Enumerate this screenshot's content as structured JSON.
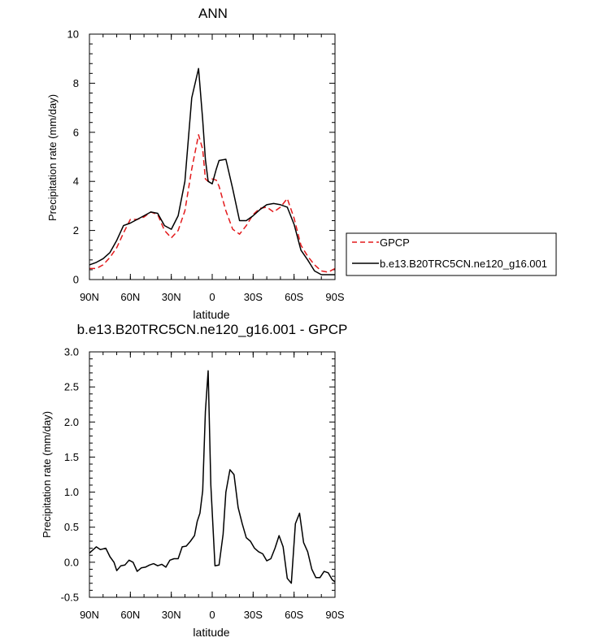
{
  "chart_data": [
    {
      "type": "line",
      "title": "ANN",
      "xlabel": "latitude",
      "ylabel": "Precipitation rate (mm/day)",
      "xlim": [
        90,
        -90
      ],
      "ylim": [
        0,
        10
      ],
      "xticks": [
        "90N",
        "60N",
        "30N",
        "0",
        "30S",
        "60S",
        "90S"
      ],
      "yticks": [
        "0",
        "2",
        "4",
        "6",
        "8",
        "10"
      ],
      "legend_position": "right",
      "series": [
        {
          "name": "GPCP",
          "color": "#e31a1c",
          "dash": "dashed",
          "x": [
            90,
            85,
            80,
            75,
            70,
            65,
            60,
            55,
            50,
            45,
            40,
            35,
            30,
            25,
            20,
            15,
            10,
            7,
            5,
            3,
            0,
            -3,
            -5,
            -10,
            -15,
            -20,
            -25,
            -30,
            -35,
            -40,
            -45,
            -50,
            -55,
            -60,
            -65,
            -70,
            -75,
            -80,
            -85,
            -90
          ],
          "y": [
            0.45,
            0.45,
            0.6,
            0.9,
            1.3,
            1.9,
            2.45,
            2.45,
            2.55,
            2.75,
            2.65,
            2.0,
            1.7,
            2.0,
            2.8,
            4.5,
            5.9,
            5.3,
            4.1,
            4.0,
            4.1,
            4.05,
            3.8,
            2.8,
            2.05,
            1.85,
            2.2,
            2.65,
            2.9,
            2.95,
            2.75,
            2.95,
            3.3,
            2.5,
            1.4,
            0.95,
            0.6,
            0.35,
            0.3,
            0.45
          ]
        },
        {
          "name": "b.e13.B20TRC5CN.ne120_g16.001",
          "color": "#000000",
          "dash": "solid",
          "x": [
            90,
            85,
            80,
            75,
            70,
            65,
            60,
            55,
            50,
            45,
            40,
            35,
            30,
            25,
            20,
            15,
            10,
            7,
            5,
            3,
            0,
            -3,
            -5,
            -10,
            -15,
            -20,
            -25,
            -30,
            -35,
            -40,
            -45,
            -50,
            -55,
            -60,
            -65,
            -70,
            -75,
            -80,
            -85,
            -90
          ],
          "y": [
            0.6,
            0.7,
            0.85,
            1.1,
            1.6,
            2.2,
            2.3,
            2.45,
            2.6,
            2.75,
            2.7,
            2.2,
            2.05,
            2.6,
            4.0,
            7.4,
            8.6,
            6.5,
            4.9,
            4.0,
            3.9,
            4.5,
            4.85,
            4.9,
            3.7,
            2.4,
            2.4,
            2.6,
            2.85,
            3.05,
            3.1,
            3.05,
            2.95,
            2.25,
            1.2,
            0.8,
            0.35,
            0.2,
            0.2,
            0.2
          ]
        }
      ]
    },
    {
      "type": "line",
      "title": "b.e13.B20TRC5CN.ne120_g16.001 - GPCP",
      "xlabel": "latitude",
      "ylabel": "Precipitation rate (mm/day)",
      "xlim": [
        90,
        -90
      ],
      "ylim": [
        -0.5,
        3.0
      ],
      "xticks": [
        "90N",
        "60N",
        "30N",
        "0",
        "30S",
        "60S",
        "90S"
      ],
      "yticks": [
        "-0.5",
        "0.0",
        "0.5",
        "1.0",
        "1.5",
        "2.0",
        "2.5",
        "3.0"
      ],
      "series": [
        {
          "color": "#000000",
          "dash": "solid",
          "x": [
            90,
            85,
            82,
            78,
            75,
            72,
            70,
            67,
            64,
            61,
            58,
            55,
            52,
            49,
            46,
            43,
            40,
            37,
            34,
            31,
            28,
            25,
            22,
            19,
            16,
            13,
            11,
            9,
            7,
            5,
            3,
            1,
            -2,
            -5,
            -8,
            -10,
            -13,
            -16,
            -19,
            -22,
            -25,
            -28,
            -31,
            -34,
            -37,
            -40,
            -43,
            -46,
            -49,
            -52,
            -55,
            -58,
            -61,
            -64,
            -67,
            -70,
            -73,
            -76,
            -79,
            -82,
            -85,
            -88,
            -90
          ],
          "y": [
            0.13,
            0.22,
            0.18,
            0.2,
            0.08,
            0.0,
            -0.12,
            -0.05,
            -0.04,
            0.03,
            0.0,
            -0.13,
            -0.08,
            -0.07,
            -0.04,
            -0.02,
            -0.05,
            -0.03,
            -0.07,
            0.03,
            0.05,
            0.05,
            0.22,
            0.23,
            0.3,
            0.38,
            0.58,
            0.7,
            1.02,
            2.15,
            2.73,
            1.1,
            -0.05,
            -0.04,
            0.4,
            1.0,
            1.32,
            1.25,
            0.78,
            0.55,
            0.35,
            0.3,
            0.2,
            0.15,
            0.12,
            0.02,
            0.05,
            0.2,
            0.38,
            0.22,
            -0.23,
            -0.3,
            0.55,
            0.7,
            0.28,
            0.15,
            -0.1,
            -0.22,
            -0.22,
            -0.13,
            -0.15,
            -0.25,
            -0.28
          ]
        }
      ]
    }
  ]
}
